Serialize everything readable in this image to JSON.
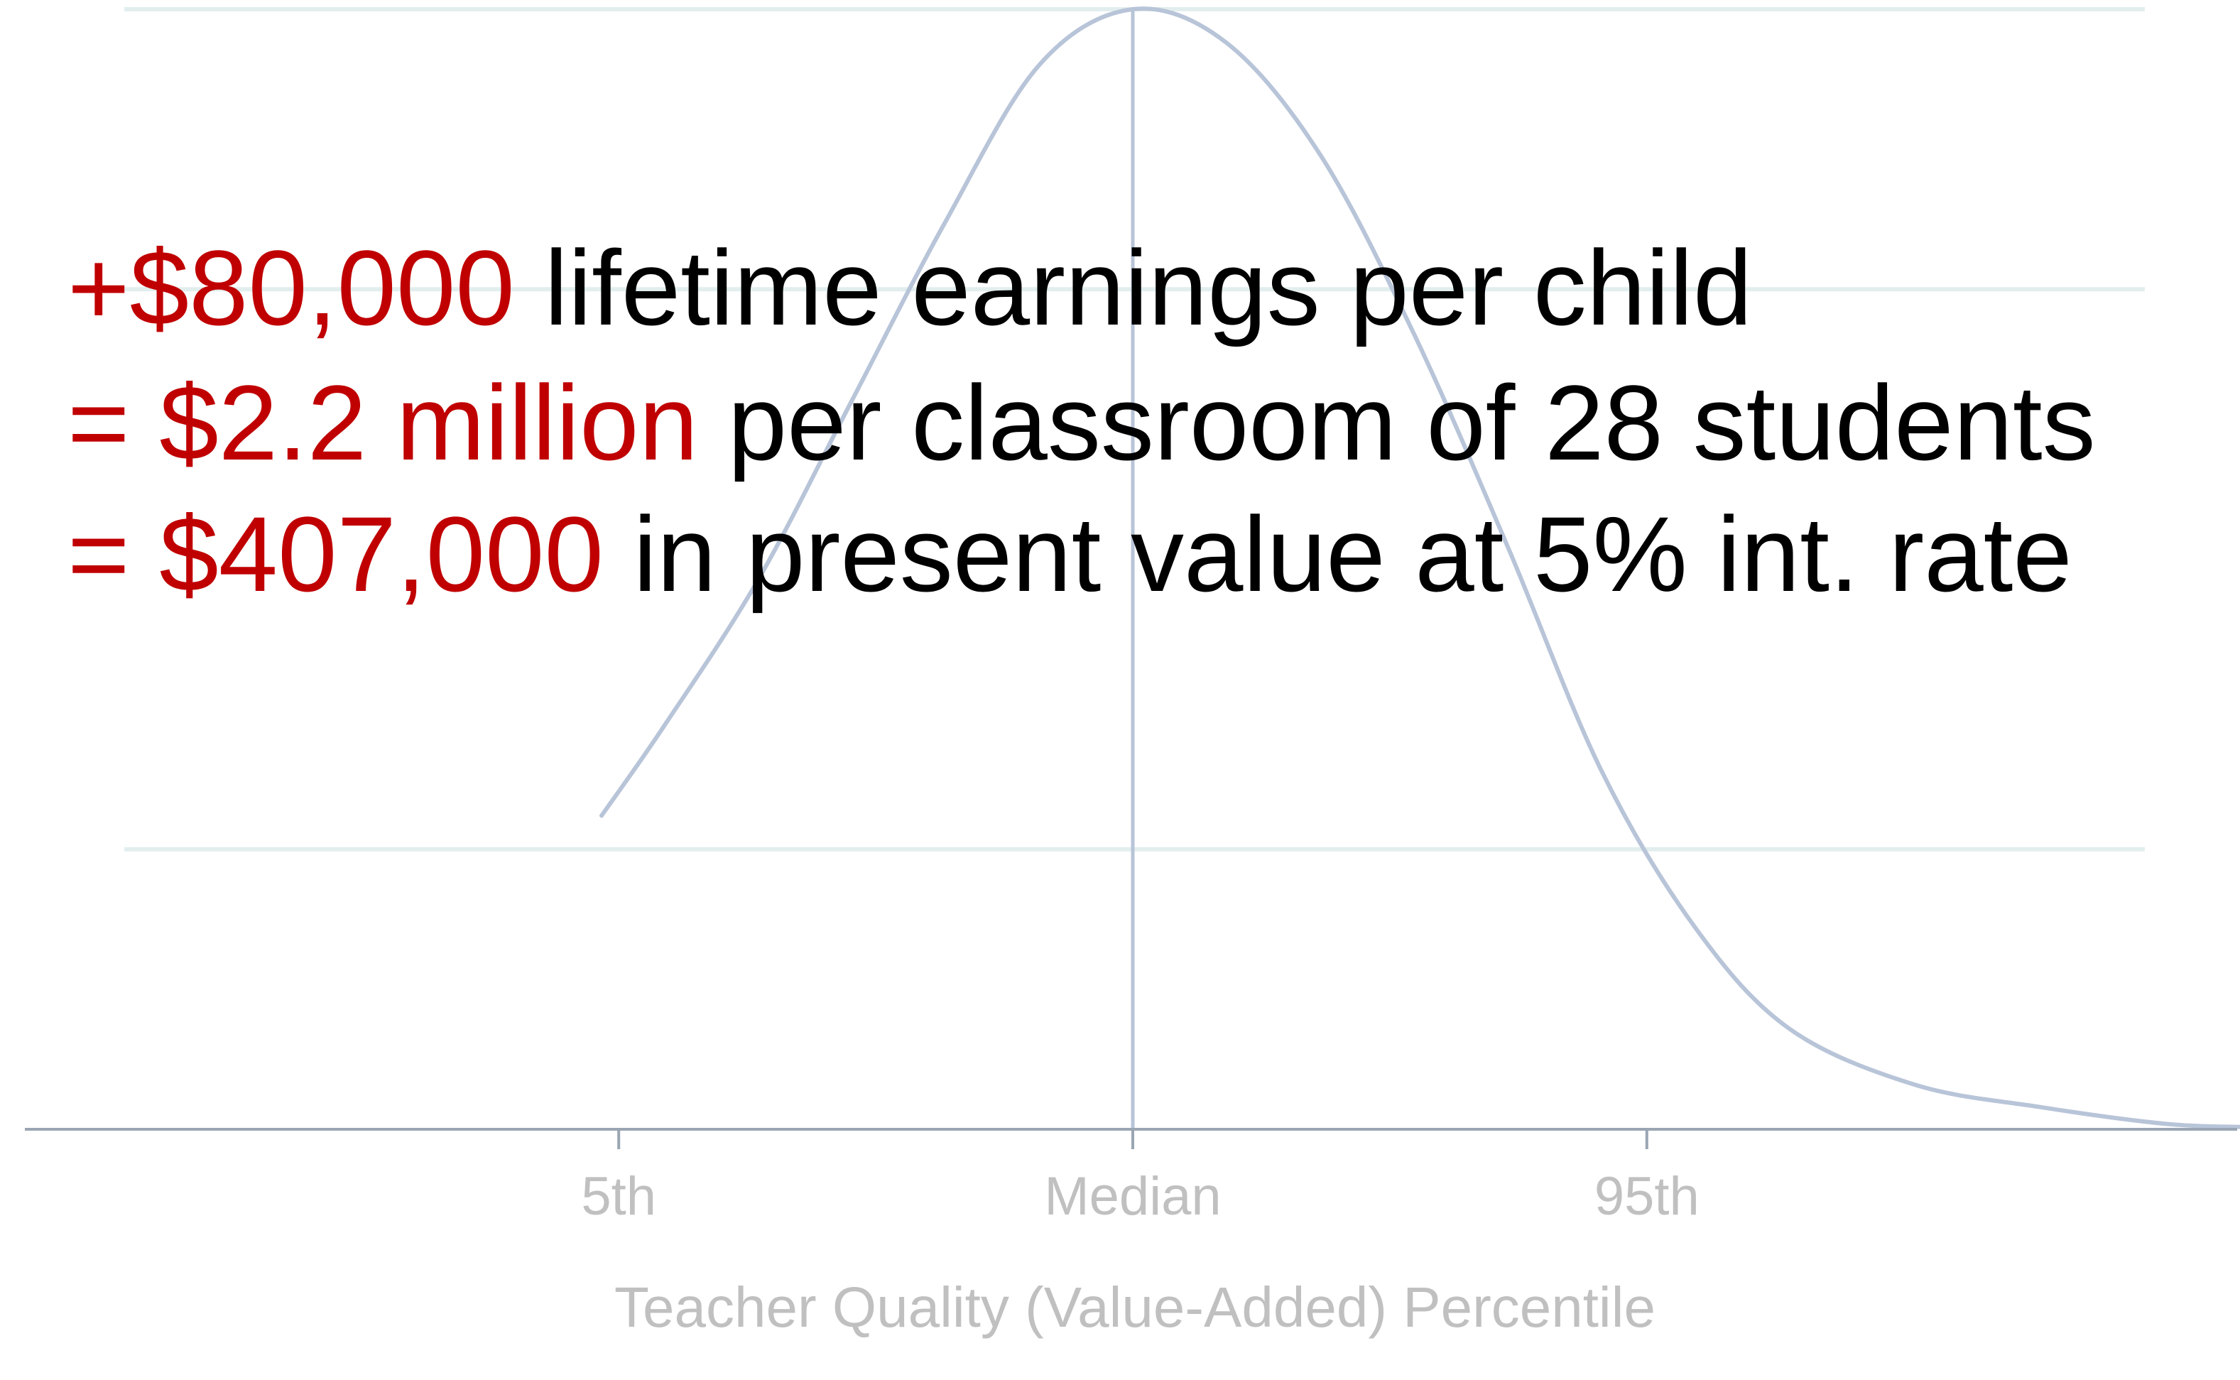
{
  "chart_data": {
    "type": "line",
    "xlabel": "Teacher Quality (Value-Added) Percentile",
    "ylabel": "",
    "title": "",
    "x_ticks": [
      "5th",
      "Median",
      "95th"
    ],
    "x_tick_values": [
      -1.645,
      0,
      1.645
    ],
    "xlim": [
      -3.55,
      3.55
    ],
    "ylim": [
      0,
      1
    ],
    "grid": true,
    "gridlines_y": [
      0.25,
      0.75,
      1.0
    ],
    "series": [
      {
        "name": "",
        "color": "#b8c4d8",
        "points": [
          [
            -1.7,
            0.28
          ],
          [
            -1.5,
            0.36
          ],
          [
            -1.2,
            0.49
          ],
          [
            -0.9,
            0.65
          ],
          [
            -0.6,
            0.81
          ],
          [
            -0.3,
            0.95
          ],
          [
            0,
            1.0
          ],
          [
            0.3,
            0.97
          ],
          [
            0.6,
            0.87
          ],
          [
            0.9,
            0.71
          ],
          [
            1.2,
            0.52
          ],
          [
            1.5,
            0.32
          ],
          [
            1.8,
            0.18
          ],
          [
            2.1,
            0.09
          ],
          [
            2.5,
            0.04
          ],
          [
            2.9,
            0.02
          ],
          [
            3.3,
            0.005
          ],
          [
            3.55,
            0.002
          ]
        ]
      }
    ],
    "annotations": [
      {
        "highlight": "+$80,000",
        "text": " lifetime earnings per child"
      },
      {
        "highlight": "= $2.2 million",
        "text": " per classroom of 28 students"
      },
      {
        "highlight": "= $407,000",
        "text": " in present value at 5% int. rate"
      }
    ],
    "colors": {
      "highlight": "#c00000",
      "text": "#000000",
      "axis_label": "#c0c0c0",
      "gridline": "#e2eeee",
      "axis": "#9aa5b3",
      "median_line": "#b8c4d8"
    }
  }
}
